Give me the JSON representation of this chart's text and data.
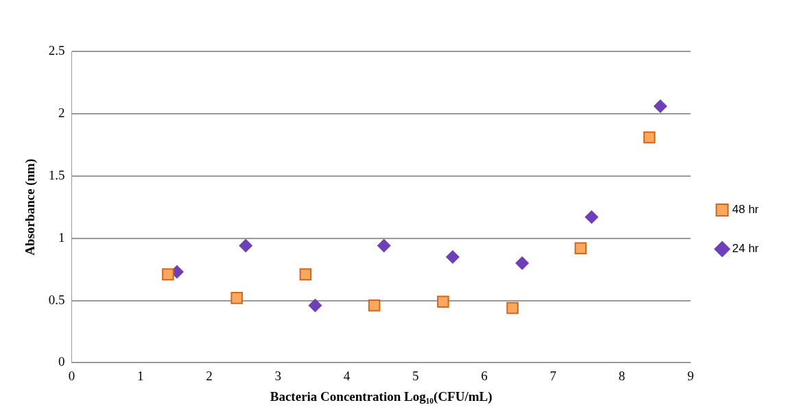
{
  "chart_data": {
    "type": "scatter",
    "xlabel": "Bacteria Concentration Log₁₀(CFU/mL)",
    "ylabel": "Absorbance (nm)",
    "xlim": [
      0,
      9
    ],
    "xticks": [
      0,
      1,
      2,
      3,
      4,
      5,
      6,
      7,
      8,
      9
    ],
    "ylim": [
      0,
      2.5
    ],
    "yticks": [
      0,
      0.5,
      1,
      1.5,
      2,
      2.5
    ],
    "grid": "y",
    "legend": "right",
    "series": [
      {
        "name": "48 hr",
        "color": "#f9a85e",
        "marker": "square",
        "x": [
          1.4,
          2.4,
          3.4,
          4.4,
          5.4,
          6.41,
          7.4,
          8.4
        ],
        "values": [
          0.71,
          0.52,
          0.71,
          0.46,
          0.49,
          0.44,
          0.92,
          1.81
        ]
      },
      {
        "name": "24 hr",
        "color": "#6f3fba",
        "marker": "diamond",
        "x": [
          1.53,
          2.53,
          3.54,
          4.54,
          5.54,
          6.55,
          7.56,
          8.56
        ],
        "values": [
          0.73,
          0.94,
          0.46,
          0.94,
          0.85,
          0.8,
          1.17,
          2.06
        ]
      }
    ]
  }
}
